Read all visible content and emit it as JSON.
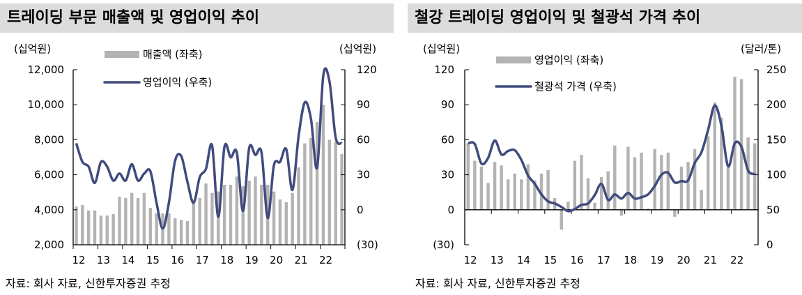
{
  "chart_data": [
    {
      "type": "bar+line",
      "title": "트레이딩 부문 매출액 및 영업이익 추이",
      "source": "자료: 회사 자료, 신한투자증권 추정",
      "left_unit": "(십억원)",
      "right_unit": "(십억원)",
      "x_ticks": [
        "12",
        "13",
        "14",
        "15",
        "16",
        "17",
        "18",
        "19",
        "20",
        "21",
        "22"
      ],
      "left_ticks": [
        "2,000",
        "4,000",
        "6,000",
        "8,000",
        "10,000",
        "12,000"
      ],
      "right_ticks": [
        "(30)",
        "0",
        "30",
        "60",
        "90",
        "120"
      ],
      "ylim_left": [
        2000,
        12000
      ],
      "ylim_right": [
        -30,
        120
      ],
      "series": [
        {
          "name": "매출액 (좌축)",
          "type": "bar",
          "axis": "left",
          "color": "#b3b3b3",
          "values": [
            4190,
            4270,
            3960,
            3960,
            3670,
            3670,
            3750,
            4750,
            4670,
            4960,
            4670,
            4960,
            4110,
            3800,
            3790,
            3790,
            3520,
            3430,
            3350,
            4350,
            4670,
            5500,
            4960,
            5040,
            5430,
            5430,
            5900,
            5350,
            5660,
            5900,
            5430,
            5430,
            5040,
            4590,
            4430,
            4960,
            6420,
            7790,
            8100,
            9020,
            10000,
            8000,
            7900,
            7190
          ]
        },
        {
          "name": "영업이익 (우축)",
          "type": "line",
          "axis": "right",
          "color": "#414b7e",
          "values": [
            57,
            41,
            37,
            23,
            41,
            37,
            25,
            31,
            25,
            39,
            25,
            31,
            33,
            6,
            -16,
            6,
            42,
            46,
            24,
            6,
            28,
            35,
            55,
            -6,
            54,
            45,
            49,
            -1,
            53,
            47,
            49,
            -7,
            38,
            41,
            52,
            17,
            63,
            92,
            78,
            36,
            115,
            110,
            62,
            57
          ]
        }
      ]
    },
    {
      "type": "bar+line",
      "title": "철강 트레이딩 영업이익 및 철광석 가격 추이",
      "source": "자료: 회사 자료, 신한투자증권 추정",
      "left_unit": "(십억원)",
      "right_unit": "(달러/톤)",
      "x_ticks": [
        "12",
        "13",
        "14",
        "15",
        "16",
        "17",
        "18",
        "19",
        "20",
        "21",
        "22"
      ],
      "left_ticks": [
        "(30)",
        "0",
        "30",
        "60",
        "90",
        "120"
      ],
      "right_ticks": [
        "0",
        "50",
        "100",
        "150",
        "200",
        "250"
      ],
      "ylim_left": [
        -30,
        120
      ],
      "ylim_right": [
        0,
        250
      ],
      "series": [
        {
          "name": "영업이익 (좌축)",
          "type": "bar",
          "axis": "left",
          "color": "#b3b3b3",
          "values": [
            57,
            42,
            37,
            23,
            41,
            38,
            26,
            31,
            26,
            39,
            25,
            31,
            34,
            10,
            -17,
            7,
            42,
            47,
            27,
            6,
            28,
            33,
            55,
            -5,
            54,
            45,
            49,
            1,
            52,
            47,
            49,
            -6,
            37,
            41,
            52,
            17,
            63,
            92,
            79,
            36,
            114,
            112,
            62,
            57
          ]
        },
        {
          "name": "철광석 가격 (우축)",
          "type": "line",
          "axis": "right",
          "color": "#414b7e",
          "values": [
            145,
            144,
            116,
            124,
            149,
            129,
            134,
            135,
            121,
            99,
            87,
            72,
            62,
            59,
            54,
            48,
            51,
            57,
            59,
            71,
            87,
            64,
            72,
            66,
            74,
            66,
            68,
            72,
            84,
            100,
            103,
            89,
            91,
            92,
            117,
            132,
            164,
            199,
            170,
            112,
            145,
            140,
            106,
            101
          ]
        }
      ]
    }
  ]
}
